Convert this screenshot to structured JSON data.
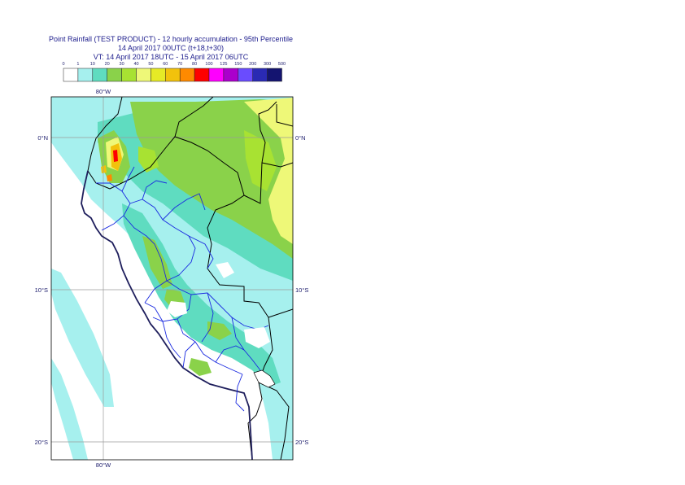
{
  "title": {
    "line1": "Point Rainfall (TEST PRODUCT) - 12 hourly accumulation - 95th Percentile",
    "line2": "14 April 2017 00UTC (t+18,t+30)",
    "line3": "VT: 14 April 2017 18UTC - 15 April 2017 06UTC"
  },
  "legend": {
    "thresholds": [
      "0",
      "1",
      "10",
      "20",
      "30",
      "40",
      "50",
      "60",
      "70",
      "80",
      "100",
      "125",
      "150",
      "200",
      "300",
      "500"
    ],
    "colors": [
      "#ffffff",
      "#a6f0ee",
      "#5fdcc0",
      "#8ad24a",
      "#a8e232",
      "#eef878",
      "#e6ea26",
      "#f2c20c",
      "#fe8a00",
      "#fe0000",
      "#fe00fe",
      "#aa00cc",
      "#6a4cfe",
      "#2a2ab4",
      "#141470"
    ]
  },
  "axes": {
    "lon_top": "80°W",
    "lon_bottom": "80°W",
    "lat_left": [
      "0°N",
      "10°S",
      "20°S"
    ],
    "lat_right": [
      "0°N",
      "10°S",
      "20°S"
    ]
  }
}
